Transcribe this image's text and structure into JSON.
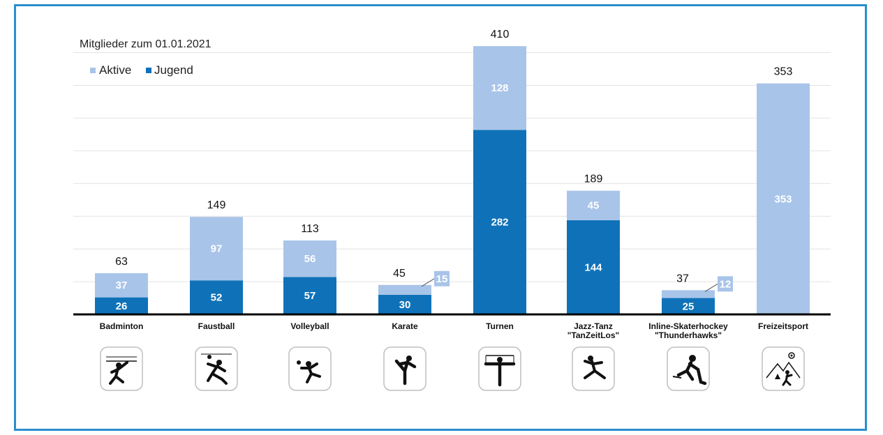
{
  "chart_data": {
    "type": "bar",
    "stacked": true,
    "title": "Mitglieder zum 01.01.2021",
    "legend": {
      "placement": "top-left",
      "entries": [
        "Aktive",
        "Jugend"
      ]
    },
    "categories": [
      [
        "Badminton"
      ],
      [
        "Faustball"
      ],
      [
        "Volleyball"
      ],
      [
        "Karate"
      ],
      [
        "Turnen"
      ],
      [
        "Jazz-Tanz",
        "\"TanZeitLos\""
      ],
      [
        "Inline-Skaterhockey",
        "\"Thunderhawks\""
      ],
      [
        "Freizeitsport"
      ]
    ],
    "series": [
      {
        "name": "Jugend",
        "color": "#0f72b8",
        "values": [
          26,
          52,
          57,
          30,
          282,
          144,
          25,
          0
        ]
      },
      {
        "name": "Aktive",
        "color": "#a9c4e9",
        "values": [
          37,
          97,
          56,
          15,
          128,
          45,
          12,
          353
        ]
      }
    ],
    "totals": [
      63,
      149,
      113,
      45,
      410,
      189,
      37,
      353
    ],
    "ylim": [
      0,
      440
    ],
    "grid": true,
    "icons": [
      "badminton-icon",
      "faustball-icon",
      "volleyball-icon",
      "karate-icon",
      "gymnastics-icon",
      "jazz-dance-icon",
      "inline-hockey-icon",
      "leisure-sport-icon"
    ]
  }
}
